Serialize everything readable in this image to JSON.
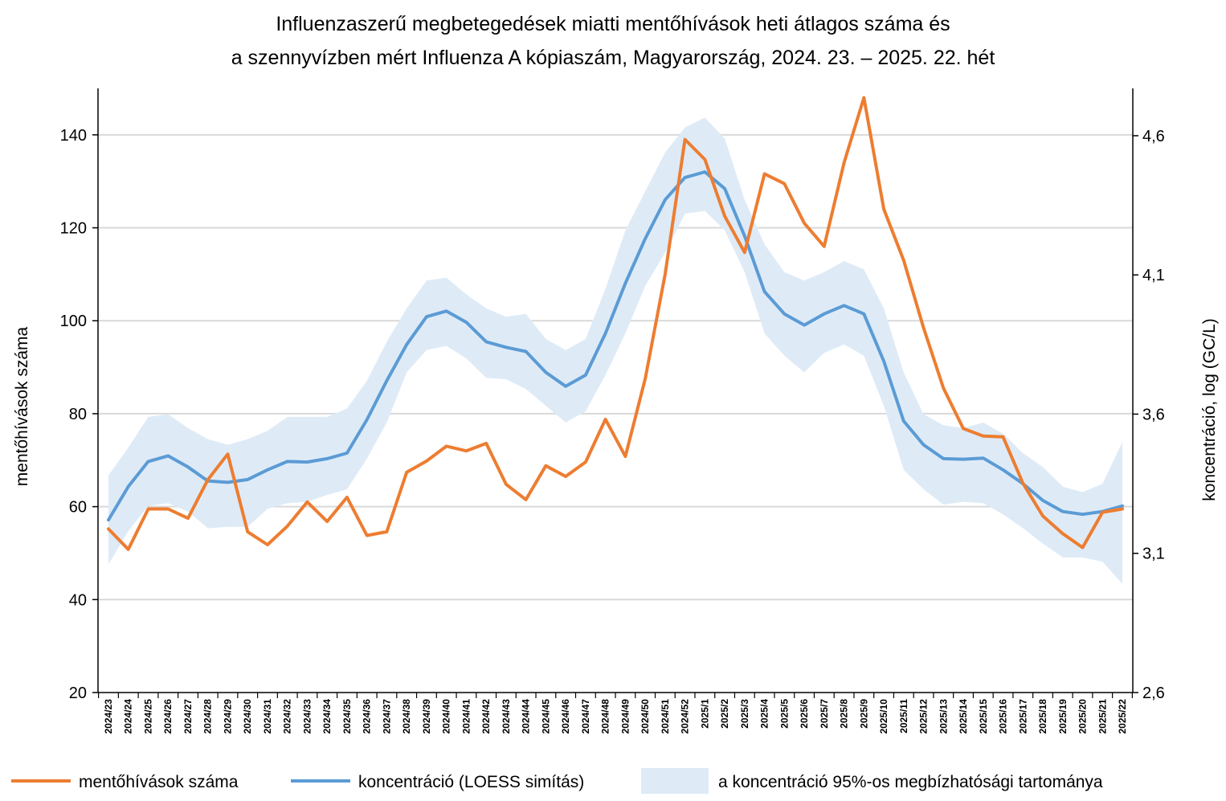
{
  "chart_data": {
    "type": "line",
    "title": {
      "line1": "Influenzaszerű megbetegedések miatti mentőhívások heti átlagos száma és",
      "line2": "a szennyvízben mért Influenza A kópiaszám, Magyarország, 2024. 23. – 2025. 22. hét"
    },
    "ylabel": "mentőhívások száma",
    "y2label": "koncentráció, log (GC/L)",
    "ylim": [
      20,
      150
    ],
    "y2lim": [
      2.6,
      4.77
    ],
    "yticks": [
      "20",
      "40",
      "60",
      "80",
      "100",
      "120",
      "140"
    ],
    "y2ticks": [
      "2,6",
      "3,1",
      "3,6",
      "4,1",
      "4,6"
    ],
    "grid": true,
    "legend_position": "bottom",
    "categories": [
      "2024/23",
      "2024/24",
      "2024/25",
      "2024/26",
      "2024/27",
      "2024/28",
      "2024/29",
      "2024/30",
      "2024/31",
      "2024/32",
      "2024/33",
      "2024/34",
      "2024/35",
      "2024/36",
      "2024/37",
      "2024/38",
      "2024/39",
      "2024/40",
      "2024/41",
      "2024/42",
      "2024/43",
      "2024/44",
      "2024/45",
      "2024/46",
      "2024/47",
      "2024/48",
      "2024/49",
      "2024/50",
      "2024/51",
      "2024/52",
      "2025/1",
      "2025/2",
      "2025/3",
      "2025/4",
      "2025/5",
      "2025/6",
      "2025/7",
      "2025/8",
      "2025/9",
      "2025/10",
      "2025/11",
      "2025/12",
      "2025/13",
      "2025/14",
      "2025/15",
      "2025/16",
      "2025/17",
      "2025/18",
      "2025/19",
      "2025/20",
      "2025/21",
      "2025/22"
    ],
    "series": [
      {
        "name": "mentőhívások száma",
        "color": "#ED7D31",
        "axis": "left",
        "values": [
          55.2,
          50.8,
          59.5,
          59.5,
          57.5,
          65.8,
          71.3,
          54.6,
          51.8,
          55.8,
          61.0,
          56.8,
          62.0,
          53.8,
          54.6,
          67.4,
          69.8,
          73.0,
          72.0,
          73.6,
          64.8,
          61.5,
          68.8,
          66.5,
          69.6,
          78.8,
          70.8,
          87.5,
          110.0,
          139.0,
          134.7,
          122.5,
          114.7,
          131.6,
          129.5,
          121.0,
          116.0,
          134.0,
          148.0,
          124.0,
          113.0,
          98.5,
          85.5,
          76.8,
          75.2,
          75.0,
          65.0,
          58.0,
          54.2,
          51.2,
          58.8,
          59.5
        ]
      },
      {
        "name": "koncentráció (LOESS simítás)",
        "color": "#5B9BD5",
        "axis": "right",
        "values": [
          3.22,
          3.34,
          3.43,
          3.45,
          3.41,
          3.36,
          3.355,
          3.365,
          3.4,
          3.43,
          3.428,
          3.44,
          3.46,
          3.58,
          3.72,
          3.85,
          3.95,
          3.97,
          3.93,
          3.86,
          3.84,
          3.825,
          3.75,
          3.7,
          3.74,
          3.89,
          4.07,
          4.23,
          4.37,
          4.45,
          4.47,
          4.41,
          4.24,
          4.04,
          3.96,
          3.92,
          3.96,
          3.99,
          3.96,
          3.79,
          3.575,
          3.49,
          3.44,
          3.438,
          3.442,
          3.4,
          3.35,
          3.29,
          3.25,
          3.24,
          3.25,
          3.27
        ]
      },
      {
        "name": "a koncentráció 95%-os megbízhatósági tartománya",
        "color": "#DEEBF7",
        "axis": "right",
        "type": "band",
        "upper": [
          3.38,
          3.48,
          3.59,
          3.6,
          3.55,
          3.51,
          3.49,
          3.51,
          3.54,
          3.59,
          3.59,
          3.59,
          3.62,
          3.72,
          3.86,
          3.98,
          4.08,
          4.09,
          4.03,
          3.98,
          3.95,
          3.96,
          3.87,
          3.83,
          3.87,
          4.05,
          4.26,
          4.4,
          4.54,
          4.63,
          4.665,
          4.59,
          4.37,
          4.21,
          4.11,
          4.08,
          4.11,
          4.15,
          4.12,
          3.98,
          3.75,
          3.6,
          3.56,
          3.55,
          3.57,
          3.53,
          3.46,
          3.41,
          3.34,
          3.32,
          3.35,
          3.5
        ],
        "lower": [
          3.06,
          3.18,
          3.27,
          3.28,
          3.25,
          3.19,
          3.195,
          3.195,
          3.26,
          3.28,
          3.285,
          3.31,
          3.33,
          3.44,
          3.57,
          3.75,
          3.83,
          3.845,
          3.8,
          3.73,
          3.725,
          3.69,
          3.63,
          3.57,
          3.61,
          3.74,
          3.89,
          4.06,
          4.18,
          4.32,
          4.33,
          4.26,
          4.11,
          3.89,
          3.81,
          3.75,
          3.82,
          3.85,
          3.81,
          3.63,
          3.4,
          3.33,
          3.275,
          3.285,
          3.28,
          3.24,
          3.19,
          3.135,
          3.085,
          3.085,
          3.07,
          2.99
        ]
      }
    ]
  }
}
